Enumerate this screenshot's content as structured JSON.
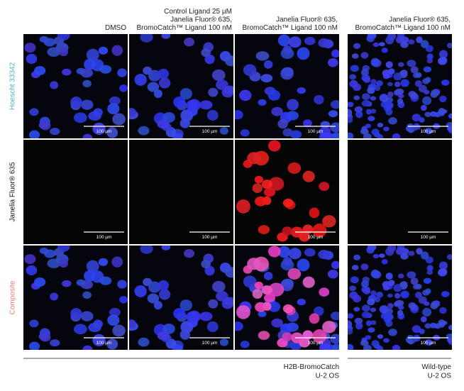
{
  "columns": [
    {
      "header_lines": [
        "DMSO"
      ]
    },
    {
      "header_lines": [
        "Control Ligand 25 µM",
        "Janelia Fluor® 635,",
        "BromoCatch™ Ligand 100 nM"
      ]
    },
    {
      "header_lines": [
        "Janelia Fluor® 635,",
        "BromoCatch™ Ligand 100 nM"
      ]
    },
    {
      "header_lines": [
        "Janelia Fluor® 635,",
        "BromoCatch™ Ligand 100 nM"
      ]
    }
  ],
  "rows": [
    {
      "label": "Hoescht 33342"
    },
    {
      "label": "Janelia Fluor® 635"
    },
    {
      "label": "Composite"
    }
  ],
  "panels": [
    [
      "100 µm",
      "100 µm",
      "100 µm",
      "100 µm"
    ],
    [
      "100 µm",
      "100 µm",
      "100 µm",
      "100 µm"
    ],
    [
      "100 µm",
      "100 µm",
      "100 µm",
      "100 µm"
    ]
  ],
  "groups": [
    {
      "lines": [
        "H2B-BromoCatch",
        "U-2 OS"
      ]
    },
    {
      "lines": [
        "Wild-type",
        "U-2 OS"
      ]
    }
  ]
}
